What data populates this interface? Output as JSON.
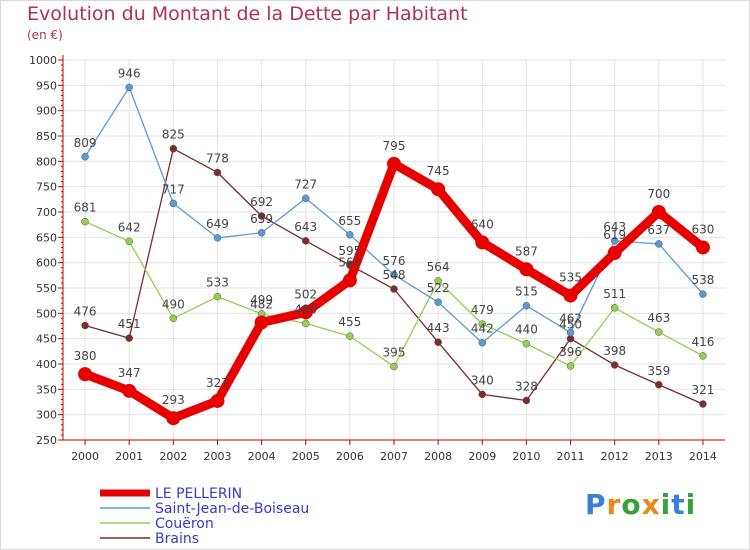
{
  "title": "Evolution du Montant de la Dette par Habitant",
  "subtitle": "(en €)",
  "logo": {
    "text": "Proxiti",
    "colors": [
      "#3a7fd8",
      "#e8891c",
      "#3aa13a",
      "#e8891c",
      "#3aa13a",
      "#3a7fd8",
      "#3aa13a"
    ]
  },
  "chart_data": {
    "type": "line",
    "title": "Evolution du Montant de la Dette par Habitant",
    "ylabel": "(en €)",
    "x": [
      "2000",
      "2001",
      "2002",
      "2003",
      "2004",
      "2005",
      "2006",
      "2007",
      "2008",
      "2009",
      "2010",
      "2011",
      "2012",
      "2013",
      "2014"
    ],
    "ylim": [
      250,
      1000
    ],
    "yticks": [
      250,
      300,
      350,
      400,
      450,
      500,
      550,
      600,
      650,
      700,
      750,
      800,
      850,
      900,
      950,
      1000
    ],
    "grid": true,
    "legend_position": "bottom-left",
    "series": [
      {
        "name": "LE PELLERIN",
        "color": "#e60000",
        "width": 9,
        "marker": 7,
        "values": [
          380,
          347,
          293,
          327,
          482,
          502,
          565,
          795,
          745,
          640,
          587,
          535,
          619,
          700,
          630
        ]
      },
      {
        "name": "Saint-Jean-de-Boiseau",
        "color": "#5b9bd5",
        "width": 1.3,
        "marker": 3.5,
        "values": [
          809,
          946,
          717,
          649,
          659,
          727,
          655,
          576,
          522,
          442,
          515,
          462,
          643,
          637,
          538
        ]
      },
      {
        "name": "Couëron",
        "color": "#92d050",
        "width": 1.3,
        "marker": 3.5,
        "values": [
          681,
          642,
          490,
          533,
          499,
          480,
          455,
          395,
          564,
          479,
          440,
          396,
          511,
          463,
          416
        ]
      },
      {
        "name": "Brains",
        "color": "#7b2c2c",
        "width": 1.3,
        "marker": 3.5,
        "values": [
          476,
          451,
          825,
          778,
          692,
          643,
          595,
          548,
          443,
          340,
          328,
          450,
          398,
          359,
          321
        ]
      }
    ]
  }
}
